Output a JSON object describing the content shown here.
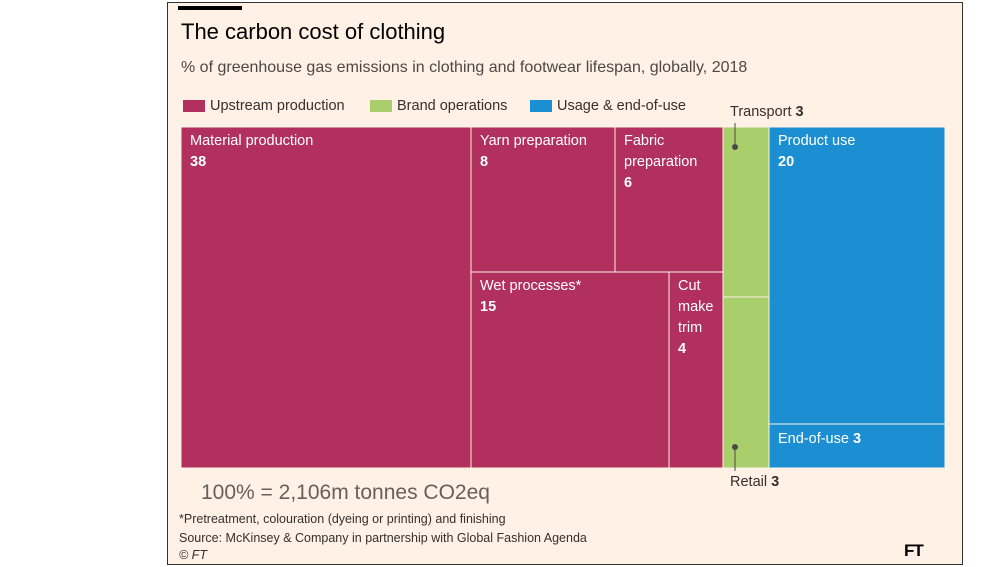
{
  "chart_data": {
    "type": "treemap",
    "title": "The carbon cost of clothing",
    "subtitle": "% of greenhouse gas emissions in clothing and footwear lifespan, globally, 2018",
    "legend": [
      {
        "label": "Upstream production",
        "color": "#b1305d"
      },
      {
        "label": "Brand operations",
        "color": "#a9cf6d"
      },
      {
        "label": "Usage & end-of-use",
        "color": "#1b8fd2"
      }
    ],
    "cells": [
      {
        "label": "Material production",
        "value": 38,
        "group": "Upstream production"
      },
      {
        "label": "Yarn preparation",
        "value": 8,
        "group": "Upstream production"
      },
      {
        "label": "Fabric preparation",
        "value": 6,
        "group": "Upstream production"
      },
      {
        "label": "Wet processes*",
        "value": 15,
        "group": "Upstream production"
      },
      {
        "label": "Cut make trim",
        "value": 4,
        "group": "Upstream production"
      },
      {
        "label": "Transport",
        "value": 3,
        "group": "Brand operations"
      },
      {
        "label": "Retail",
        "value": 3,
        "group": "Brand operations"
      },
      {
        "label": "Product use",
        "value": 20,
        "group": "Usage & end-of-use"
      },
      {
        "label": "End-of-use",
        "value": 3,
        "group": "Usage & end-of-use"
      }
    ],
    "total": "100% = 2,106m tonnes CO2eq",
    "footnote": "*Pretreatment, colouration (dyeing or printing) and finishing",
    "source": "Source: McKinsey & Company in partnership with Global Fashion Agenda",
    "copyright": "© FT"
  },
  "logo": "FT"
}
